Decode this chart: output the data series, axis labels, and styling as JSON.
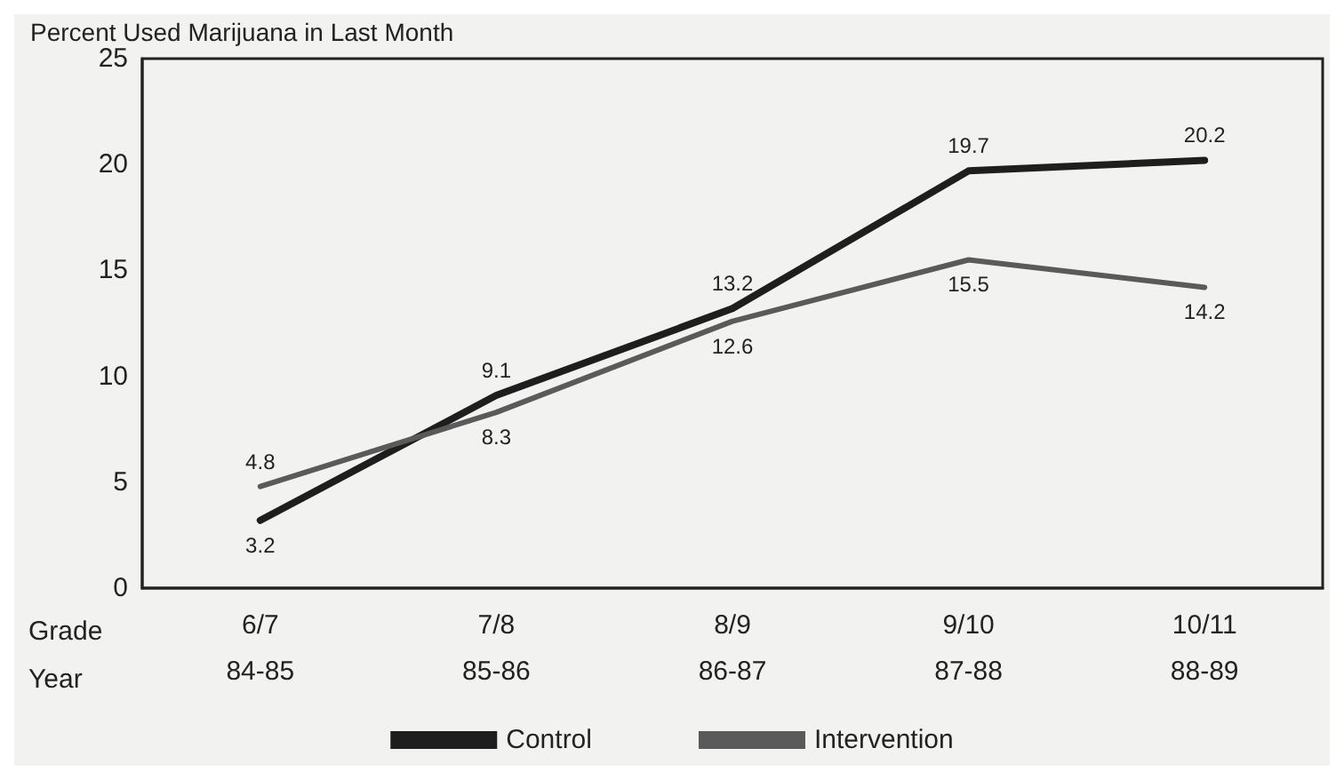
{
  "chart_data": {
    "type": "line",
    "title": "Percent Used Marijuana in Last Month",
    "categories": [
      "6/7\n84-85",
      "7/8\n85-86",
      "8/9\n86-87",
      "9/10\n87-88",
      "10/11\n88-89"
    ],
    "series": [
      {
        "name": "Control",
        "color": "#1e1e1e",
        "values": [
          3.2,
          9.1,
          13.2,
          19.7,
          20.2
        ]
      },
      {
        "name": "Intervention",
        "color": "#5a5a5a",
        "values": [
          4.8,
          8.3,
          12.6,
          15.5,
          14.2
        ]
      }
    ],
    "ylim": [
      0,
      25
    ],
    "yticks": [
      0,
      5,
      10,
      15,
      20,
      25
    ],
    "grid": false,
    "legend": "bottom",
    "data_labels": true,
    "marker": "none",
    "line_style": "solid",
    "annotations": [
      "Grade",
      "Year"
    ]
  }
}
